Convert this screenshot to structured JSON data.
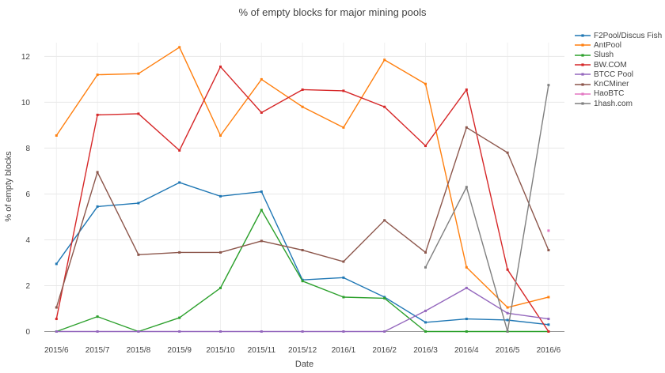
{
  "chart_data": {
    "type": "line",
    "title": "% of empty blocks for major mining pools",
    "xlabel": "Date",
    "ylabel": "% of empty blocks",
    "categories": [
      "2015/6",
      "2015/7",
      "2015/8",
      "2015/9",
      "2015/10",
      "2015/11",
      "2015/12",
      "2016/1",
      "2016/2",
      "2016/3",
      "2016/4",
      "2016/5",
      "2016/6"
    ],
    "yticks": [
      0,
      2,
      4,
      6,
      8,
      10,
      12
    ],
    "ylim": [
      0,
      12.6
    ],
    "grid": true,
    "legend_position": "right",
    "series": [
      {
        "name": "F2Pool/Discus Fish",
        "color": "#1f77b4",
        "values": [
          2.95,
          5.45,
          5.6,
          6.5,
          5.9,
          6.1,
          2.25,
          2.35,
          1.5,
          0.4,
          0.55,
          0.5,
          0.3
        ]
      },
      {
        "name": "AntPool",
        "color": "#ff7f0e",
        "values": [
          8.55,
          11.2,
          11.25,
          12.4,
          8.55,
          11.0,
          9.8,
          8.9,
          11.85,
          10.8,
          2.8,
          1.05,
          1.5
        ]
      },
      {
        "name": "Slush",
        "color": "#2ca02c",
        "values": [
          0,
          0.65,
          0,
          0.6,
          1.9,
          5.3,
          2.2,
          1.5,
          1.45,
          0,
          0,
          0,
          0
        ]
      },
      {
        "name": "BW.COM",
        "color": "#d62728",
        "values": [
          0.55,
          9.45,
          9.5,
          7.9,
          11.55,
          9.55,
          10.55,
          10.5,
          9.8,
          8.1,
          10.55,
          2.7,
          0
        ]
      },
      {
        "name": "BTCC Pool",
        "color": "#9467bd",
        "values": [
          0,
          0,
          0,
          0,
          0,
          0,
          0,
          0,
          0,
          0.9,
          1.9,
          0.8,
          0.55
        ]
      },
      {
        "name": "KnCMiner",
        "color": "#8c564b",
        "values": [
          1.05,
          6.95,
          3.35,
          3.45,
          3.45,
          3.95,
          3.55,
          3.05,
          4.85,
          3.45,
          8.9,
          7.8,
          3.55
        ]
      },
      {
        "name": "HaoBTC",
        "color": "#e377c2",
        "values": [
          null,
          null,
          null,
          null,
          null,
          null,
          null,
          null,
          null,
          null,
          null,
          null,
          4.4
        ]
      },
      {
        "name": "1hash.com",
        "color": "#7f7f7f",
        "values": [
          null,
          null,
          null,
          null,
          null,
          null,
          null,
          null,
          null,
          2.8,
          6.3,
          0,
          10.75
        ]
      }
    ],
    "colors": {
      "axis_text": "#444444",
      "gridline": "#e8e8e8",
      "minor_gridline": "#f0f0f0",
      "zeroline": "#999999",
      "background": "#ffffff"
    }
  }
}
